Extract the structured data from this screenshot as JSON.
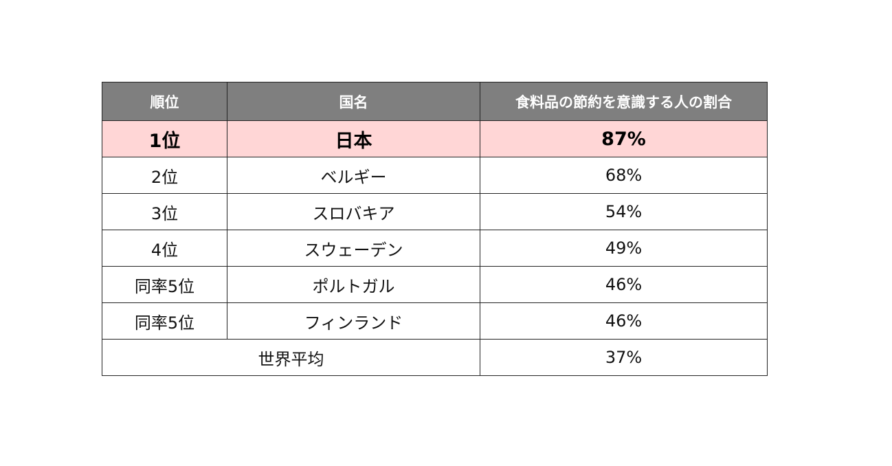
{
  "chart_data": {
    "type": "table",
    "columns": [
      "順位",
      "国名",
      "食料品の節約を意識する人の割合"
    ],
    "rows": [
      {
        "rank": "1位",
        "country": "日本",
        "percent": "87%",
        "value": 87,
        "highlight": true
      },
      {
        "rank": "2位",
        "country": "ベルギー",
        "percent": "68%",
        "value": 68,
        "highlight": false
      },
      {
        "rank": "3位",
        "country": "スロバキア",
        "percent": "54%",
        "value": 54,
        "highlight": false
      },
      {
        "rank": "4位",
        "country": "スウェーデン",
        "percent": "49%",
        "value": 49,
        "highlight": false
      },
      {
        "rank": "同率5位",
        "country": "ポルトガル",
        "percent": "46%",
        "value": 46,
        "highlight": false
      },
      {
        "rank": "同率5位",
        "country": "フィンランド",
        "percent": "46%",
        "value": 46,
        "highlight": false
      }
    ],
    "footer": {
      "label": "世界平均",
      "percent": "37%",
      "value": 37
    }
  },
  "colors": {
    "header_bg": "#7f7f7f",
    "header_text": "#ffffff",
    "highlight_bg": "#ffd6d6",
    "border": "#222222"
  }
}
